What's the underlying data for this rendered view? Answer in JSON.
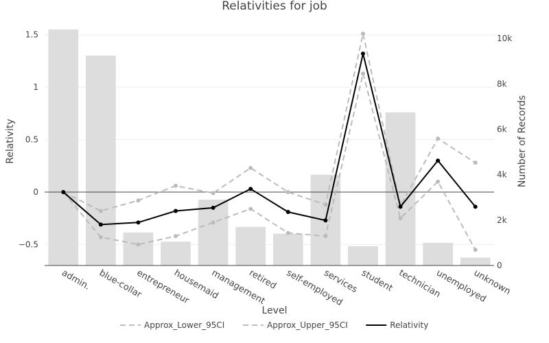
{
  "chart_data": {
    "type": "bar",
    "title": "Relativities for job",
    "xlabel": "Level",
    "ylabel": "Relativity",
    "y2label": "Number of Records",
    "categories": [
      "admin.",
      "blue-collar",
      "entrepreneur",
      "housemaid",
      "management",
      "retired",
      "self-employed",
      "services",
      "student",
      "technician",
      "unemployed",
      "unknown"
    ],
    "ylim": [
      -0.7,
      1.55
    ],
    "yticks": [
      -0.5,
      0,
      0.5,
      1,
      1.5
    ],
    "ytick_labels": [
      "−0.5",
      "0",
      "0.5",
      "1",
      "1.5"
    ],
    "y2lim": [
      0,
      10400
    ],
    "y2ticks": [
      0,
      2000,
      4000,
      6000,
      8000,
      10000
    ],
    "y2tick_labels": [
      "0",
      "2k",
      "4k",
      "6k",
      "8k",
      "10k"
    ],
    "bar_series": {
      "name": "Number of Records",
      "values": [
        10400,
        9250,
        1450,
        1050,
        2900,
        1700,
        1400,
        4000,
        850,
        6750,
        1000,
        350
      ]
    },
    "series": [
      {
        "name": "Approx_Lower_95CI",
        "style": "dashed",
        "color": "#bbbbbb",
        "values": [
          0.0,
          -0.43,
          -0.5,
          -0.42,
          -0.29,
          -0.16,
          -0.39,
          -0.42,
          1.13,
          -0.25,
          0.1,
          -0.55
        ]
      },
      {
        "name": "Approx_Upper_95CI",
        "style": "dashed",
        "color": "#bbbbbb",
        "values": [
          0.0,
          -0.18,
          -0.08,
          0.06,
          -0.01,
          0.23,
          0.0,
          -0.12,
          1.51,
          -0.13,
          0.51,
          0.28
        ]
      },
      {
        "name": "Relativity",
        "style": "solid",
        "color": "#000000",
        "values": [
          0.0,
          -0.31,
          -0.29,
          -0.18,
          -0.15,
          0.03,
          -0.19,
          -0.27,
          1.32,
          -0.14,
          0.3,
          -0.14
        ]
      }
    ],
    "legend_position": "bottom-center",
    "grid": true,
    "colors": {
      "bar": "#dddddd",
      "grid": "#eeeeee",
      "zero_line": "#444444",
      "axis": "#444444"
    }
  }
}
